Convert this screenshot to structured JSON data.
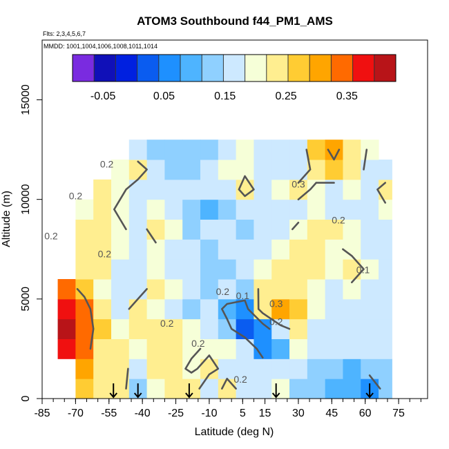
{
  "chart_data": {
    "type": "heatmap",
    "title": "ATOM3 Southbound f44_PM1_AMS",
    "flights_label": "Flts: 2,3,4,5,6,7",
    "dates_label": "MMDD: 1001,1004,1006,1008,1011,1014",
    "xlabel": "Latitude (deg N)",
    "ylabel": "Altitude (m)",
    "xlim": [
      -85,
      88
    ],
    "ylim": [
      0,
      18000
    ],
    "x_ticks": [
      "-85",
      "-70",
      "-55",
      "-40",
      "-25",
      "-10",
      "5",
      "15",
      "30",
      "45",
      "60",
      "75"
    ],
    "x_tick_values": [
      -85,
      -70,
      -55,
      -40,
      -25,
      -10,
      5,
      15,
      30,
      45,
      60,
      75
    ],
    "y_ticks": [
      "0",
      "5000",
      "10000",
      "15000"
    ],
    "y_tick_values": [
      0,
      5000,
      10000,
      15000
    ],
    "colorbar": {
      "range": [
        -0.1,
        0.43
      ],
      "tick_labels": [
        "-0.05",
        "0.05",
        "0.15",
        "0.25",
        "0.35"
      ],
      "tick_values": [
        -0.05,
        0.05,
        0.15,
        0.25,
        0.35
      ],
      "colors": [
        "#7a2be0",
        "#1010b8",
        "#0020e0",
        "#0a5cf0",
        "#1e90ff",
        "#4eb4ff",
        "#8fd0ff",
        "#cde9ff",
        "#f6ffd8",
        "#ffee90",
        "#ffcc33",
        "#ffa500",
        "#ff6a00",
        "#f01010",
        "#b81418"
      ]
    },
    "contour_labels": [
      "0.2",
      "0.2",
      "0.2",
      "0.2",
      "0.2",
      "0.2",
      "0.2",
      "0.2",
      "0.1",
      "0.3",
      "0.2",
      "0.3",
      "0.2",
      "0.1"
    ],
    "profile_latitudes": [
      -53,
      -42,
      -19,
      20,
      62
    ],
    "field": {
      "lat_edges": [
        -78,
        -70,
        -62,
        -54,
        -46,
        -38,
        -30,
        -22,
        -14,
        -6,
        2,
        10,
        18,
        26,
        34,
        42,
        50,
        58,
        66,
        72
      ],
      "alt_edges": [
        0,
        1000,
        2000,
        3000,
        4000,
        5000,
        6000,
        7000,
        8000,
        9000,
        10000,
        11000,
        12000,
        13000
      ],
      "values": [
        [
          null,
          0.26,
          0.22,
          0.24,
          0.12,
          0.2,
          0.23,
          0.24,
          0.15,
          0.22,
          0.18,
          0.16,
          0.2,
          0.14,
          0.12,
          0.1,
          0.08,
          0.06,
          0.12
        ],
        [
          null,
          0.3,
          0.25,
          0.24,
          0.15,
          0.24,
          0.22,
          0.19,
          0.22,
          0.18,
          0.16,
          0.15,
          0.18,
          0.16,
          0.14,
          0.12,
          0.1,
          0.12,
          0.14
        ],
        [
          0.36,
          0.33,
          0.24,
          0.22,
          0.2,
          0.22,
          0.24,
          0.21,
          0.19,
          0.2,
          0.18,
          0.06,
          0.1,
          0.2,
          0.17,
          0.16,
          0.17,
          0.16,
          0.15
        ],
        [
          0.42,
          0.34,
          0.26,
          0.2,
          0.23,
          0.25,
          0.23,
          0.2,
          0.17,
          0.12,
          0.04,
          0.05,
          0.18,
          0.22,
          0.18,
          0.16,
          0.17,
          0.17,
          0.16
        ],
        [
          0.38,
          0.33,
          0.24,
          0.18,
          0.22,
          0.2,
          0.16,
          0.14,
          0.15,
          0.08,
          0.07,
          0.24,
          0.29,
          0.28,
          0.2,
          0.18,
          0.16,
          0.18,
          0.16
        ],
        [
          0.33,
          0.28,
          0.2,
          0.17,
          0.18,
          0.22,
          0.2,
          0.18,
          0.14,
          0.16,
          0.14,
          0.22,
          0.25,
          0.24,
          0.2,
          0.18,
          0.19,
          0.17,
          0.16
        ],
        [
          null,
          0.24,
          0.22,
          0.17,
          0.16,
          0.2,
          0.15,
          0.17,
          0.12,
          0.14,
          0.18,
          0.2,
          0.22,
          0.22,
          0.24,
          0.2,
          0.22,
          0.19,
          0.15
        ],
        [
          null,
          0.24,
          0.22,
          0.2,
          0.17,
          0.19,
          0.18,
          0.16,
          0.14,
          0.16,
          0.18,
          0.17,
          0.2,
          0.22,
          0.24,
          0.21,
          0.19,
          0.18,
          0.16
        ],
        [
          null,
          0.22,
          0.23,
          0.21,
          0.18,
          0.22,
          0.2,
          0.14,
          0.17,
          0.16,
          0.14,
          0.15,
          0.18,
          0.21,
          0.23,
          0.22,
          0.2,
          0.18,
          0.17
        ],
        [
          null,
          0.2,
          0.22,
          0.19,
          0.17,
          0.2,
          0.18,
          0.14,
          0.1,
          0.14,
          0.16,
          0.17,
          0.16,
          0.18,
          0.2,
          0.17,
          0.18,
          0.16,
          0.19
        ],
        [
          null,
          null,
          0.23,
          0.21,
          0.18,
          0.17,
          0.15,
          0.16,
          0.17,
          0.16,
          0.22,
          0.18,
          0.2,
          0.22,
          0.19,
          0.16,
          0.2,
          0.18,
          0.22
        ],
        [
          null,
          null,
          null,
          0.2,
          0.22,
          0.18,
          0.14,
          0.12,
          0.16,
          0.2,
          0.19,
          0.18,
          0.17,
          0.16,
          0.22,
          0.28,
          0.24,
          0.18,
          0.16
        ],
        [
          null,
          null,
          null,
          null,
          0.17,
          0.14,
          0.13,
          0.14,
          0.12,
          0.16,
          0.2,
          0.18,
          0.16,
          0.15,
          0.26,
          0.32,
          0.25,
          0.19,
          null
        ]
      ]
    }
  }
}
